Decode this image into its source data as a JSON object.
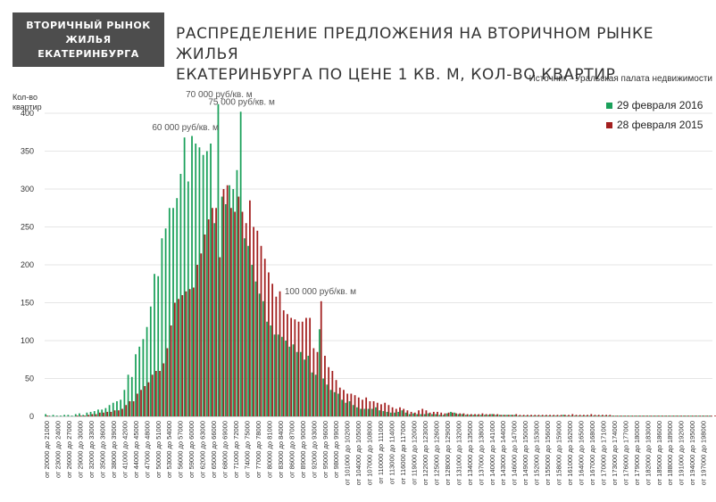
{
  "badge": {
    "line1": "ВТОРИЧНЫЙ РЫНОК ЖИЛЬЯ",
    "line2": "ЕКАТЕРИНБУРГА"
  },
  "header": {
    "title_line1": "РАСПРЕДЕЛЕНИЕ ПРЕДЛОЖЕНИЯ НА ВТОРИЧНОМ РЫНКЕ ЖИЛЬЯ",
    "title_line2": "ЕКАТЕРИНБУРГА ПО ЦЕНЕ 1 КВ. М, КОЛ-ВО КВАРТИР",
    "source": "Источник - Уральская палата недвижимости"
  },
  "chart_data": {
    "type": "bar",
    "ylabel": "Кол-во квартир",
    "ylim": [
      0,
      420
    ],
    "yticks": [
      0,
      50,
      100,
      150,
      200,
      250,
      300,
      350,
      400
    ],
    "grid": true,
    "legend": "top-right",
    "bin_width": 1000,
    "category_labels": [
      "от 20000 до 21000",
      "от 23000 до 24000",
      "от 26000 до 27000",
      "от 29000 до 30000",
      "от 32000 до 33000",
      "от 35000 до 36000",
      "от 38000 до 39000",
      "от 41000 до 42000",
      "от 44000 до 45000",
      "от 47000 до 48000",
      "от 50000 до 51000",
      "от 53000 до 54000",
      "от 56000 до 57000",
      "от 59000 до 60000",
      "от 62000 до 63000",
      "от 65000 до 66000",
      "от 68000 до 69000",
      "от 71000 до 72000",
      "от 74000 до 75000",
      "от 77000 до 78000",
      "от 80000 до 81000",
      "от 83000 до 84000",
      "от 86000 до 87000",
      "от 89000 до 90000",
      "от 92000 до 93000",
      "от 95000 до 96000",
      "от 98000 до 99000",
      "от 101000 до 102000",
      "от 104000 до 105000",
      "от 107000 до 108000",
      "от 110000 до 111000",
      "от 113000 до 114000",
      "от 116000 до 117000",
      "от 119000 до 120000",
      "от 122000 до 123000",
      "от 125000 до 126000",
      "от 128000 до 129000",
      "от 131000 до 132000",
      "от 134000 до 135000",
      "от 137000 до 138000",
      "от 140000 до 141000",
      "от 143000 до 144000",
      "от 146000 до 147000",
      "от 149000 до 150000",
      "от 152000 до 153000",
      "от 155000 до 156000",
      "от 158000 до 159000",
      "от 161000 до 162000",
      "от 164000 до 165000",
      "от 167000 до 168000",
      "от 170000 до 171000",
      "от 173000 до 174000",
      "от 176000 до 177000",
      "от 179000 до 180000",
      "от 182000 до 183000",
      "от 185000 до 186000",
      "от 188000 до 189000",
      "от 191000 до 192000",
      "от 194000 до 195000",
      "от 197000 до 198000"
    ],
    "series": [
      {
        "name": "29 февраля 2016",
        "color": "#1aa05a",
        "values": [
          3,
          1,
          2,
          1,
          1,
          2,
          2,
          1,
          3,
          4,
          2,
          5,
          6,
          7,
          9,
          9,
          11,
          15,
          18,
          20,
          22,
          35,
          55,
          52,
          82,
          92,
          102,
          118,
          145,
          188,
          185,
          235,
          248,
          275,
          275,
          288,
          320,
          368,
          310,
          370,
          360,
          355,
          345,
          350,
          360,
          255,
          412,
          290,
          280,
          305,
          300,
          325,
          402,
          235,
          225,
          200,
          178,
          162,
          152,
          125,
          120,
          108,
          108,
          105,
          100,
          92,
          95,
          85,
          85,
          75,
          80,
          58,
          55,
          115,
          50,
          42,
          35,
          32,
          30,
          22,
          18,
          20,
          15,
          12,
          10,
          10,
          10,
          10,
          12,
          8,
          7,
          6,
          5,
          5,
          6,
          8,
          5,
          3,
          4,
          3,
          3,
          3,
          4,
          3,
          3,
          2,
          2,
          4,
          6,
          5,
          3,
          3,
          2,
          2,
          2,
          2,
          2,
          2,
          2,
          3,
          2,
          2,
          2,
          2,
          2,
          2,
          1,
          1,
          1,
          1,
          1,
          1,
          1,
          1,
          1,
          1,
          1,
          1,
          2,
          1,
          1,
          1,
          1,
          1,
          1,
          1,
          1,
          1,
          1,
          1,
          1,
          1,
          1,
          1,
          1,
          1,
          1,
          1,
          1,
          1,
          1,
          1,
          1,
          1,
          1,
          1,
          1,
          1,
          1,
          1,
          1,
          1,
          1,
          1,
          1,
          1,
          1,
          1
        ]
      },
      {
        "name": "28 февраля 2015",
        "color": "#a31f1f",
        "values": [
          1,
          0,
          0,
          0,
          0,
          0,
          0,
          0,
          1,
          1,
          1,
          2,
          3,
          3,
          5,
          5,
          6,
          6,
          8,
          8,
          10,
          15,
          20,
          20,
          30,
          35,
          40,
          45,
          55,
          60,
          60,
          70,
          90,
          120,
          150,
          155,
          160,
          165,
          168,
          170,
          200,
          215,
          240,
          260,
          275,
          275,
          210,
          300,
          305,
          275,
          270,
          290,
          270,
          255,
          285,
          250,
          245,
          225,
          208,
          190,
          175,
          158,
          165,
          140,
          135,
          130,
          128,
          125,
          125,
          130,
          130,
          90,
          85,
          152,
          80,
          65,
          60,
          48,
          38,
          35,
          30,
          30,
          28,
          25,
          22,
          25,
          20,
          20,
          18,
          16,
          18,
          15,
          12,
          10,
          12,
          10,
          8,
          6,
          5,
          8,
          10,
          8,
          5,
          6,
          6,
          5,
          4,
          5,
          5,
          4,
          4,
          4,
          3,
          3,
          3,
          3,
          4,
          3,
          3,
          3,
          3,
          2,
          2,
          2,
          2,
          3,
          2,
          2,
          2,
          2,
          2,
          2,
          2,
          2,
          2,
          2,
          2,
          2,
          2,
          2,
          3,
          2,
          2,
          2,
          2,
          3,
          2,
          2,
          2,
          2,
          2,
          1,
          1,
          1,
          1,
          1,
          1,
          1,
          1,
          1,
          1,
          1,
          1,
          1,
          1,
          1,
          1,
          1,
          1,
          1,
          1,
          1,
          1,
          1,
          1,
          1,
          1,
          1,
          1,
          1,
          1,
          1
        ]
      }
    ],
    "annotations": [
      {
        "text": "60 000 руб/кв. м",
        "bin": 37,
        "y": 368
      },
      {
        "text": "70 000 руб/кв. м",
        "bin": 46,
        "y": 412
      },
      {
        "text": "75 000 руб/кв. м",
        "bin": 52,
        "y": 402
      },
      {
        "text": "100 000 руб/кв. м",
        "bin": 73,
        "y": 152
      }
    ]
  }
}
